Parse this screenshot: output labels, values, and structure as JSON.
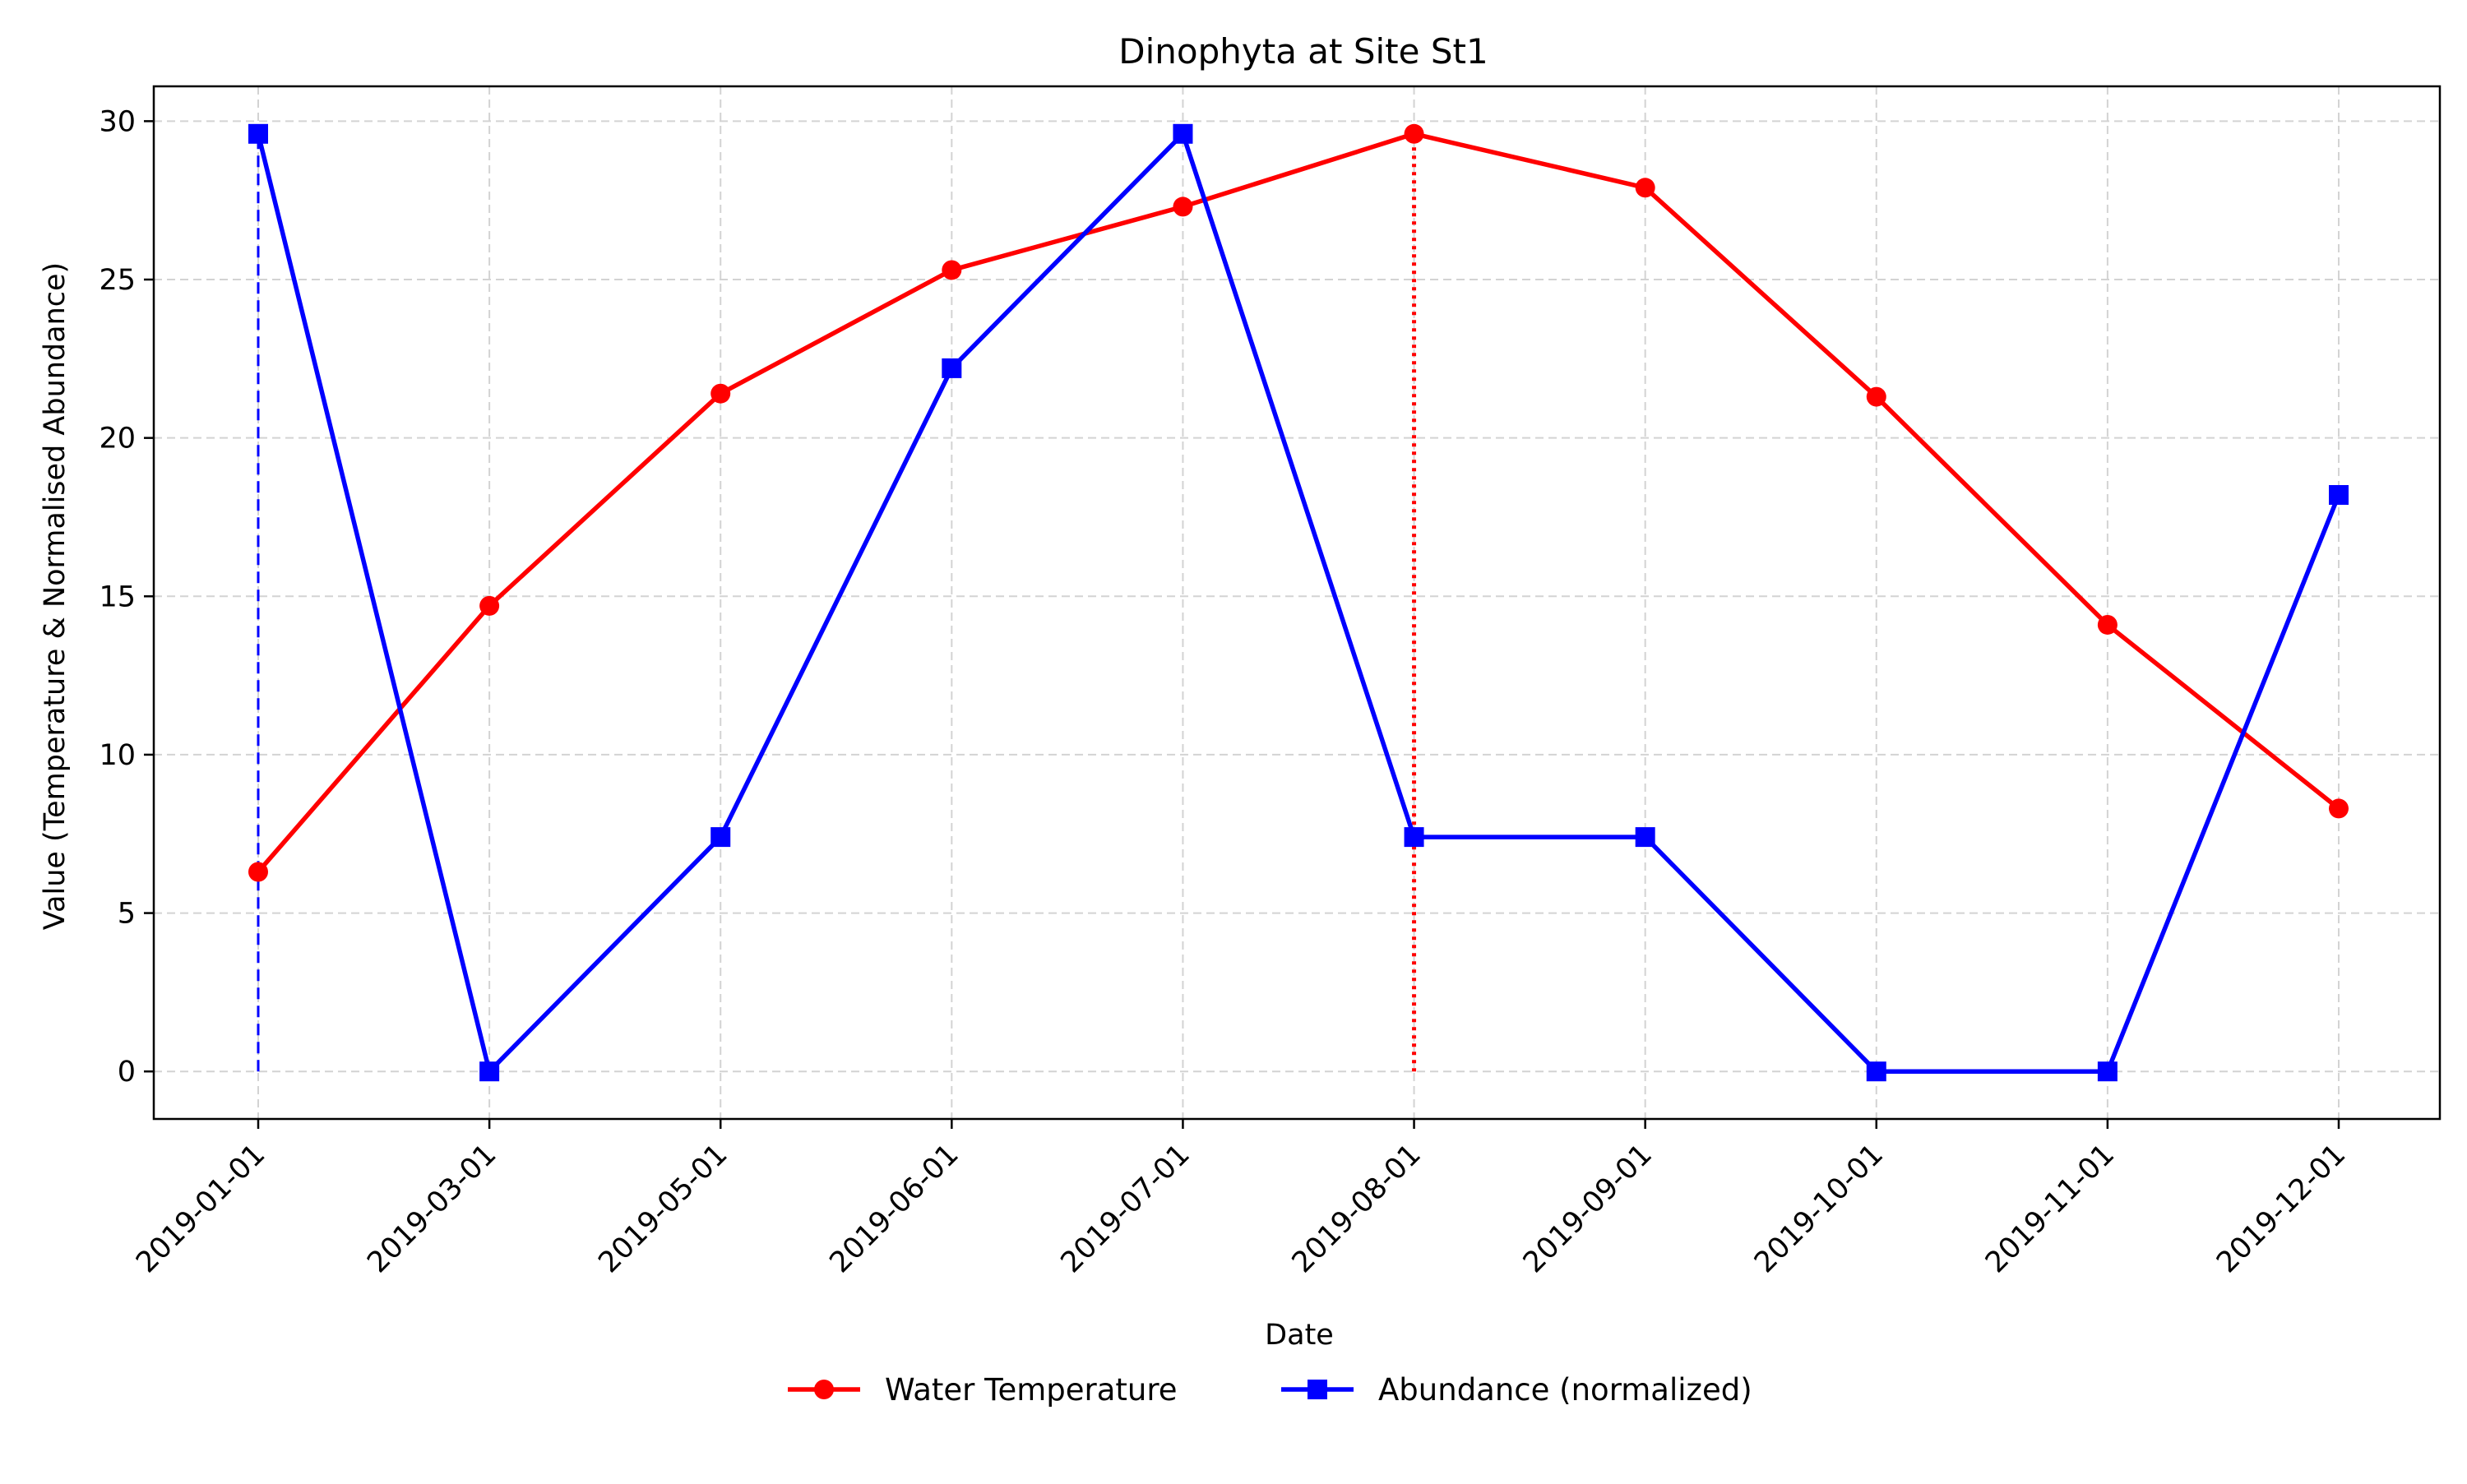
{
  "chart_data": {
    "type": "line",
    "title": "Dinophyta at Site St1",
    "xlabel": "Date",
    "ylabel": "Value (Temperature & Normalised Abundance)",
    "categories": [
      "2019-01-01",
      "2019-03-01",
      "2019-05-01",
      "2019-06-01",
      "2019-07-01",
      "2019-08-01",
      "2019-09-01",
      "2019-10-01",
      "2019-11-01",
      "2019-12-01"
    ],
    "yticks": [
      0,
      5,
      10,
      15,
      20,
      25,
      30
    ],
    "ylim": [
      -1.5,
      31.1
    ],
    "grid": true,
    "legend_position": "bottom-center",
    "series": [
      {
        "name": "Water Temperature",
        "color": "#ff0000",
        "marker": "circle",
        "values": [
          6.3,
          14.7,
          21.4,
          25.3,
          27.3,
          29.6,
          27.9,
          21.3,
          14.1,
          8.3
        ]
      },
      {
        "name": "Abundance (normalized)",
        "color": "#0000ff",
        "marker": "square",
        "values": [
          29.6,
          0.0,
          7.4,
          22.2,
          29.6,
          7.4,
          7.4,
          0.0,
          0.0,
          18.2
        ]
      }
    ],
    "reference_lines": [
      {
        "category": "2019-01-01",
        "from": 0,
        "to": 29.6,
        "color": "#0000ff",
        "style": "dashed"
      },
      {
        "category": "2019-08-01",
        "from": 0,
        "to": 29.6,
        "color": "#ff0000",
        "style": "dotted"
      }
    ]
  }
}
